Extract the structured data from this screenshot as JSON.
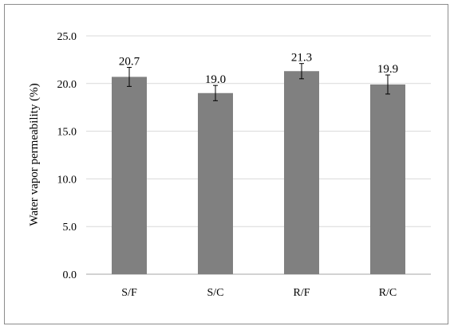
{
  "chart_data": {
    "type": "bar",
    "categories": [
      "S/F",
      "S/C",
      "R/F",
      "R/C"
    ],
    "values": [
      20.7,
      19.0,
      21.3,
      19.9
    ],
    "errors": [
      1.0,
      0.8,
      0.8,
      1.0
    ],
    "data_labels": [
      "20.7",
      "19.0",
      "21.3",
      "19.9"
    ],
    "ylabel": "Water vapor permeability (%)",
    "xlabel": "",
    "ylim": [
      0,
      25
    ],
    "yticks": [
      0,
      5,
      10,
      15,
      20,
      25
    ],
    "ytick_labels": [
      "0.0",
      "5.0",
      "10.0",
      "15.0",
      "20.0",
      "25.0"
    ],
    "grid": true,
    "bar_color": "#808080",
    "grid_color": "#d9d9d9"
  }
}
